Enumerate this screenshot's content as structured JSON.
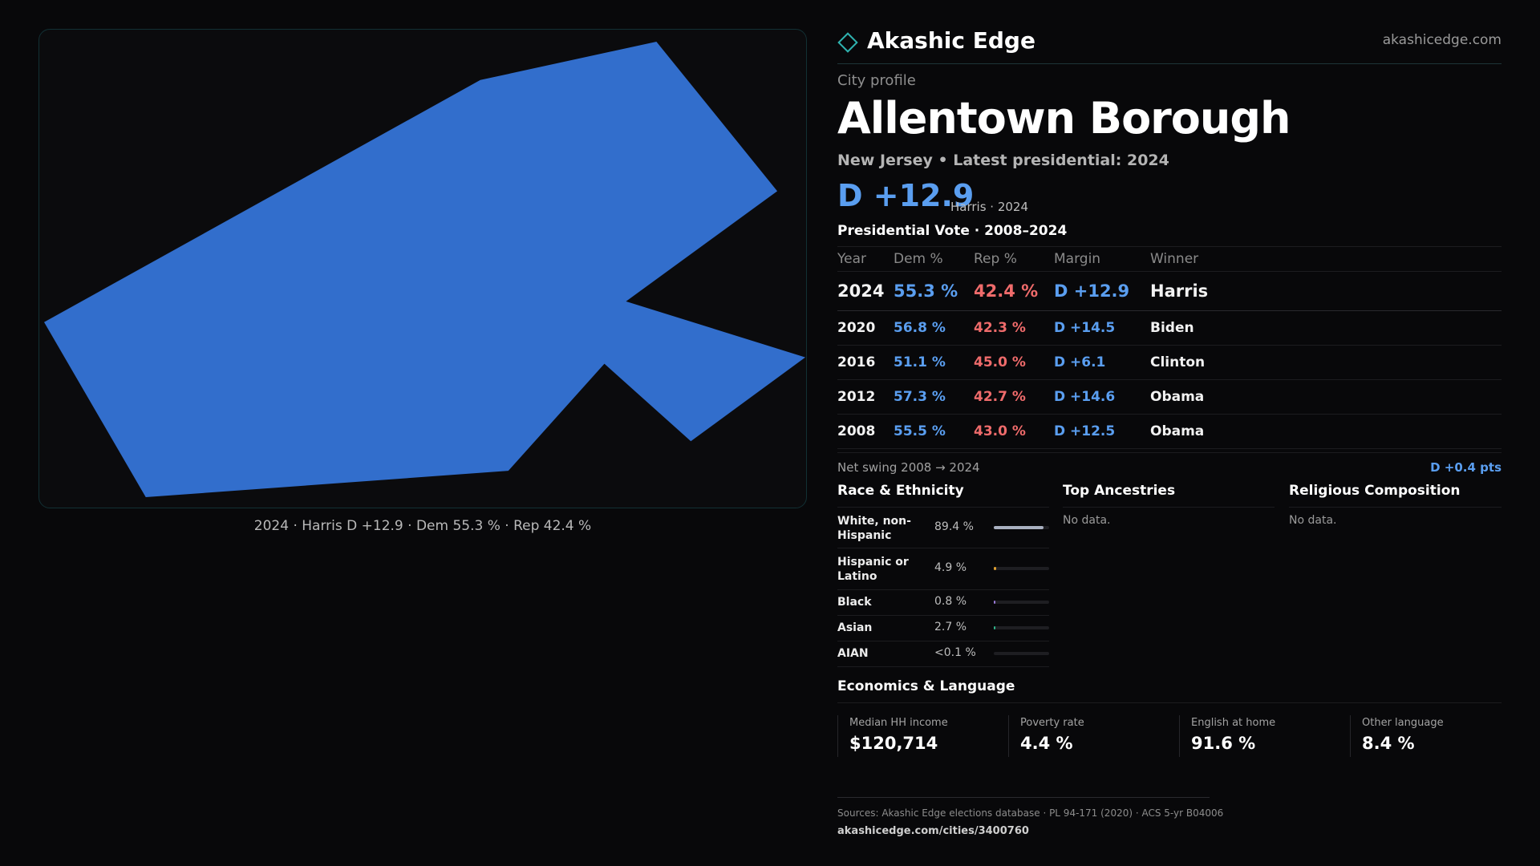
{
  "map": {
    "caption": "2024 · Harris D +12.9 · Dem 55.3 % · Rep 42.4 %",
    "fill_color": "#326ecc"
  },
  "header": {
    "logo_icon": "diamond-icon",
    "brand_name": "Akashic Edge",
    "brand_url": "akashicedge.com"
  },
  "profile": {
    "kicker": "City profile",
    "title": "Allentown Borough",
    "subtitle": "New Jersey • Latest presidential: 2024",
    "margin": "D +12.9",
    "margin_note": "Harris · 2024"
  },
  "presidential": {
    "title": "Presidential Vote · 2008–2024",
    "columns": [
      "Year",
      "Dem %",
      "Rep %",
      "Margin",
      "Winner"
    ],
    "rows": [
      {
        "year": "2024",
        "dem": "55.3 %",
        "rep": "42.4 %",
        "margin": "D +12.9",
        "winner": "Harris"
      },
      {
        "year": "2020",
        "dem": "56.8 %",
        "rep": "42.3 %",
        "margin": "D +14.5",
        "winner": "Biden"
      },
      {
        "year": "2016",
        "dem": "51.1 %",
        "rep": "45.0 %",
        "margin": "D +6.1",
        "winner": "Clinton"
      },
      {
        "year": "2012",
        "dem": "57.3 %",
        "rep": "42.7 %",
        "margin": "D +14.6",
        "winner": "Obama"
      },
      {
        "year": "2008",
        "dem": "55.5 %",
        "rep": "43.0 %",
        "margin": "D +12.5",
        "winner": "Obama"
      }
    ],
    "swing_label": "Net swing 2008 → 2024",
    "swing_value": "D +0.4 pts"
  },
  "race": {
    "title": "Race & Ethnicity",
    "rows": [
      {
        "label": "White, non-Hispanic",
        "value": "89.4 %",
        "fraction": 0.894,
        "color": "#a9b0c0"
      },
      {
        "label": "Hispanic or Latino",
        "value": "4.9 %",
        "fraction": 0.049,
        "color": "#e0a030"
      },
      {
        "label": "Black",
        "value": "0.8 %",
        "fraction": 0.008,
        "color": "#9a7ad8"
      },
      {
        "label": "Asian",
        "value": "2.7 %",
        "fraction": 0.027,
        "color": "#2fb38a"
      },
      {
        "label": "AIAN",
        "value": "<0.1 %",
        "fraction": 0.0,
        "color": "#888888"
      }
    ]
  },
  "ancestries": {
    "title": "Top Ancestries",
    "empty": "No data."
  },
  "religion": {
    "title": "Religious Composition",
    "empty": "No data."
  },
  "economics": {
    "title": "Economics & Language",
    "stats": [
      {
        "label": "Median HH income",
        "value": "$120,714"
      },
      {
        "label": "Poverty rate",
        "value": "4.4 %"
      },
      {
        "label": "English at home",
        "value": "91.6 %"
      },
      {
        "label": "Other language",
        "value": "8.4 %"
      }
    ]
  },
  "footer": {
    "sources": "Sources: Akashic Edge elections database · PL 94-171 (2020) · ACS 5-yr B04006",
    "url": "akashicedge.com/cities/3400760"
  }
}
